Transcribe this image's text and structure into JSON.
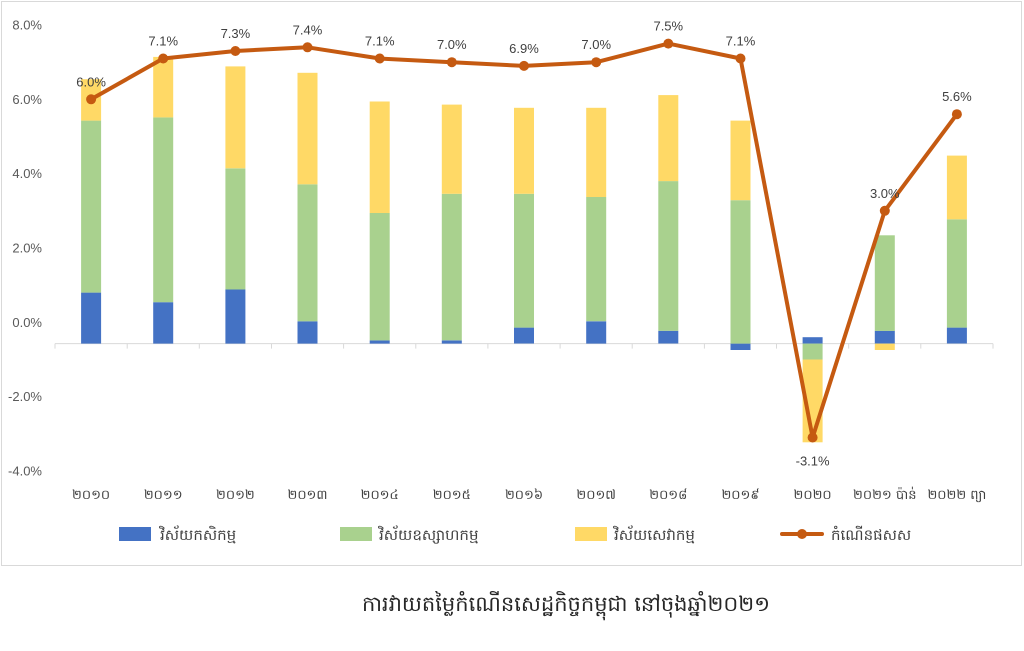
{
  "chart_data": {
    "type": "bar",
    "stacked": true,
    "title": "ការវាយតម្លៃកំណើនសេដ្ឋកិច្ចកម្ពុជា នៅចុងឆ្នាំ២០២១",
    "xlabel": "",
    "ylabel": "",
    "ylim": [
      -4,
      8
    ],
    "yticks": [
      8,
      6,
      4,
      2,
      0,
      -2,
      -4
    ],
    "ytick_labels": [
      "8.0%",
      "6.0%",
      "4.0%",
      "2.0%",
      "0.0%",
      "-2.0%",
      "-4.0%"
    ],
    "grid": false,
    "legend": "bottom",
    "categories": [
      "២០១០",
      "២០១១",
      "២០១២",
      "២០១៣",
      "២០១៤",
      "២០១៥",
      "២០១៦",
      "២០១៧",
      "២០១៨",
      "២០១៩",
      "២០២០",
      "២០២១ ប៉ាន់",
      "២០២២ ព្យា"
    ],
    "series": [
      {
        "name": "វិស័យកសិកម្ម",
        "type": "bar",
        "color": "#4472C4",
        "values": [
          1.6,
          1.3,
          1.7,
          0.7,
          0.1,
          0.1,
          0.5,
          0.7,
          0.4,
          -0.2,
          0.2,
          0.4,
          0.5
        ]
      },
      {
        "name": "វិស័យឧស្សាហកម្ម",
        "type": "bar",
        "color": "#A9D18E",
        "values": [
          5.4,
          5.8,
          3.8,
          4.3,
          4.0,
          4.6,
          4.2,
          3.9,
          4.7,
          4.5,
          -0.5,
          3.0,
          3.4
        ]
      },
      {
        "name": "វិស័យសេវាកម្ម",
        "type": "bar",
        "color": "#FFD966",
        "values": [
          1.3,
          1.9,
          3.2,
          3.5,
          3.5,
          2.8,
          2.7,
          2.8,
          2.7,
          2.5,
          -2.6,
          -0.2,
          2.0
        ]
      },
      {
        "name": "កំណើនផសស",
        "type": "line",
        "color": "#C55A11",
        "values": [
          6.0,
          7.1,
          7.3,
          7.4,
          7.1,
          7.0,
          6.9,
          7.0,
          7.5,
          7.1,
          -3.1,
          3.0,
          5.6
        ],
        "data_labels": [
          "6.0%",
          "7.1%",
          "7.3%",
          "7.4%",
          "7.1%",
          "7.0%",
          "6.9%",
          "7.0%",
          "7.5%",
          "7.1%",
          "-3.1%",
          "3.0%",
          "5.6%"
        ]
      }
    ]
  }
}
